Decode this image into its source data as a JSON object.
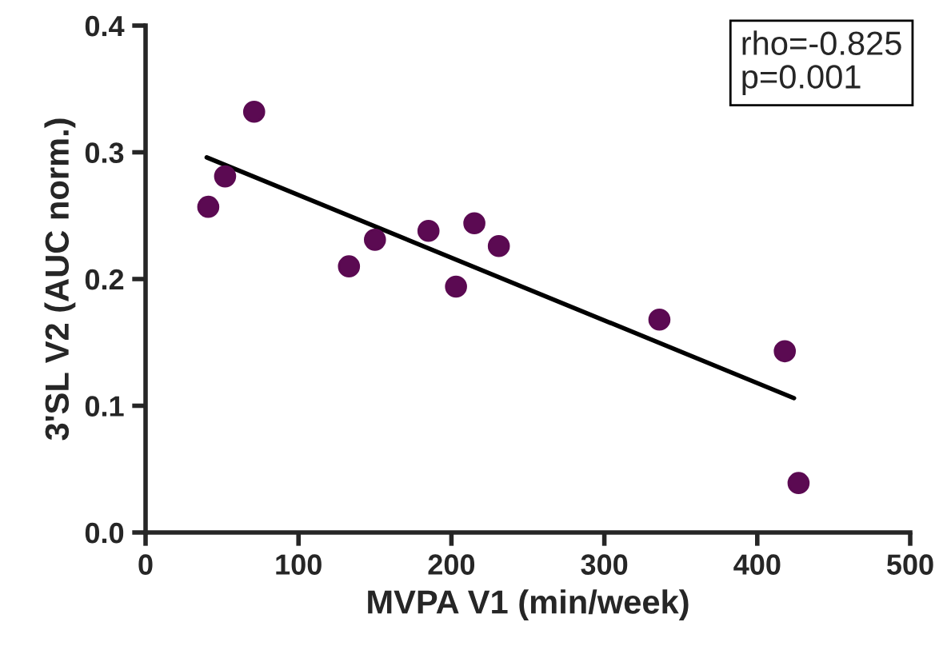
{
  "chart_data": {
    "type": "scatter",
    "xlabel": "MVPA V1 (min/week)",
    "ylabel": "3'SL V2 (AUC norm.)",
    "xlim": [
      0,
      500
    ],
    "xticks": [
      0,
      100,
      200,
      300,
      400,
      500
    ],
    "ylim": [
      0,
      0.4
    ],
    "yticks": [
      {
        "value": 0,
        "label": "0.0"
      },
      0.1,
      0.2,
      0.3,
      0.4
    ],
    "grid": false,
    "legend": false,
    "annotations": [
      "rho=-0.825\np=0.001"
    ],
    "series": [
      {
        "marker": "circle",
        "color": "#5b0a52",
        "x": [
          41,
          52,
          71,
          133,
          150,
          185,
          203,
          215,
          231,
          336,
          418,
          427
        ],
        "values": [
          0.257,
          0.281,
          0.332,
          0.21,
          0.231,
          0.238,
          0.194,
          0.244,
          0.226,
          0.168,
          0.143,
          0.039
        ]
      },
      {
        "type": "line",
        "color": "#000000",
        "line_style": "solid",
        "marker": "none",
        "x": [
          40,
          424
        ],
        "values": [
          0.296,
          0.106
        ]
      }
    ]
  }
}
